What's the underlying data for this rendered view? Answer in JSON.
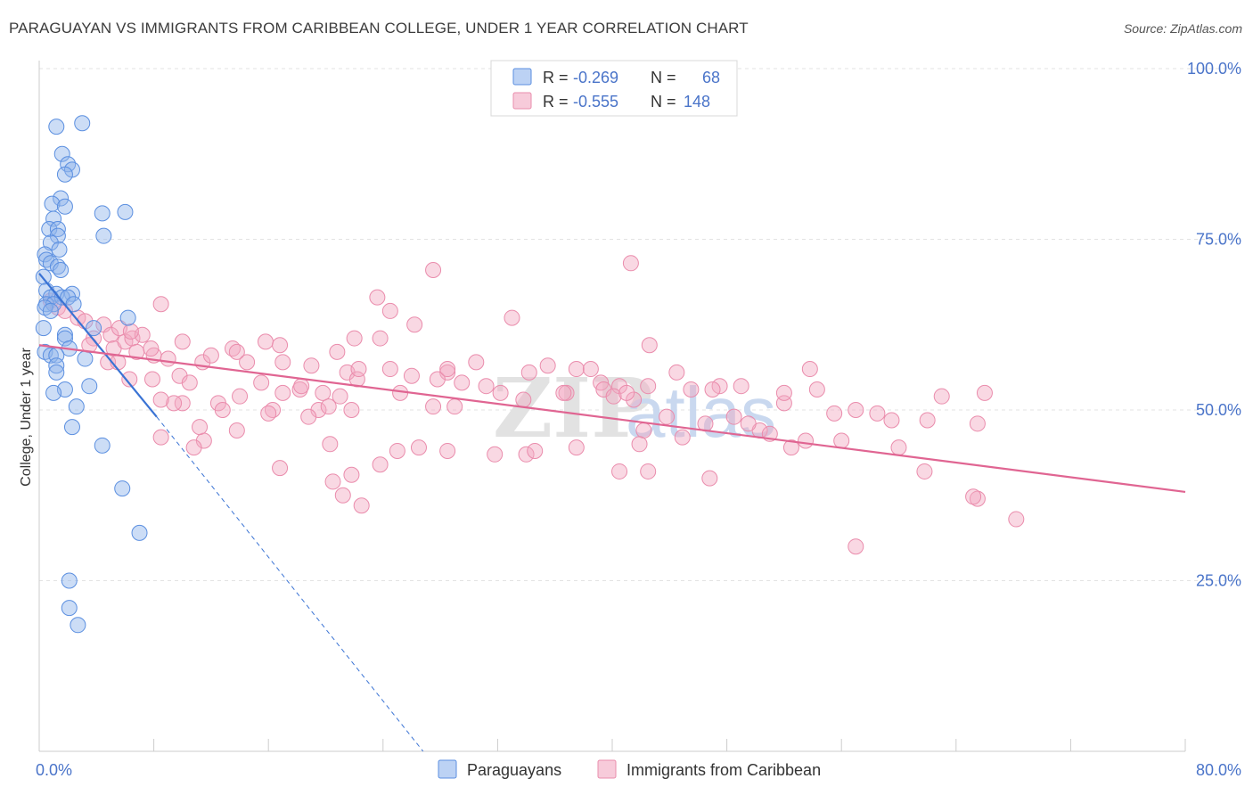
{
  "title": "PARAGUAYAN VS IMMIGRANTS FROM CARIBBEAN COLLEGE, UNDER 1 YEAR CORRELATION CHART",
  "source": "Source: ZipAtlas.com",
  "watermark": {
    "part1": "ZIP",
    "part2": "atlas"
  },
  "legend": {
    "rows": [
      {
        "r_label": "R =",
        "r_value": "-0.269",
        "n_label": "N =",
        "n_value": "68",
        "color": "#8fb4ec"
      },
      {
        "r_label": "R =",
        "r_value": "-0.555",
        "n_label": "N =",
        "n_value": "148",
        "color": "#f2a9c2"
      }
    ]
  },
  "bottom_legend": [
    {
      "label": "Paraguayans",
      "color": "#8fb4ec"
    },
    {
      "label": "Immigrants from Caribbean",
      "color": "#f2a9c2"
    }
  ],
  "chart_data": {
    "type": "scatter",
    "title": "PARAGUAYAN VS IMMIGRANTS FROM CARIBBEAN COLLEGE, UNDER 1 YEAR CORRELATION CHART",
    "xlabel": "",
    "ylabel": "College, Under 1 year",
    "xlim": [
      0,
      80
    ],
    "ylim": [
      0,
      100
    ],
    "x_tick_labels": [
      "0.0%",
      "80.0%"
    ],
    "y_tick_labels": [
      "100.0%",
      "75.0%",
      "50.0%",
      "25.0%"
    ],
    "y_ticks": [
      100,
      75,
      50,
      25
    ],
    "grid": true,
    "legend_position": "top-center",
    "series": [
      {
        "name": "Paraguayans",
        "color": "#8fb4ec",
        "stroke": "#5b8fe0",
        "trend_color": "#3a73d4",
        "points": [
          [
            3.0,
            92.0
          ],
          [
            1.2,
            91.5
          ],
          [
            1.6,
            87.5
          ],
          [
            2.0,
            86.0
          ],
          [
            2.3,
            85.2
          ],
          [
            1.8,
            84.5
          ],
          [
            1.5,
            81.0
          ],
          [
            0.9,
            80.2
          ],
          [
            1.8,
            79.8
          ],
          [
            4.4,
            78.8
          ],
          [
            6.0,
            79.0
          ],
          [
            1.0,
            78.0
          ],
          [
            0.7,
            76.5
          ],
          [
            1.3,
            76.5
          ],
          [
            1.3,
            75.5
          ],
          [
            4.5,
            75.5
          ],
          [
            0.8,
            74.5
          ],
          [
            1.4,
            73.5
          ],
          [
            0.4,
            72.8
          ],
          [
            0.5,
            72.0
          ],
          [
            0.8,
            71.5
          ],
          [
            1.3,
            71.0
          ],
          [
            1.5,
            70.5
          ],
          [
            0.3,
            69.5
          ],
          [
            0.5,
            67.5
          ],
          [
            1.2,
            67.0
          ],
          [
            2.3,
            67.0
          ],
          [
            0.8,
            66.5
          ],
          [
            1.6,
            66.5
          ],
          [
            2.0,
            66.5
          ],
          [
            0.5,
            65.5
          ],
          [
            1.0,
            65.5
          ],
          [
            2.4,
            65.5
          ],
          [
            0.4,
            65.0
          ],
          [
            0.8,
            64.5
          ],
          [
            6.2,
            63.5
          ],
          [
            0.3,
            62.0
          ],
          [
            3.8,
            62.0
          ],
          [
            1.8,
            61.0
          ],
          [
            1.8,
            60.5
          ],
          [
            2.1,
            59.0
          ],
          [
            0.4,
            58.5
          ],
          [
            0.8,
            58.0
          ],
          [
            1.2,
            58.0
          ],
          [
            3.2,
            57.5
          ],
          [
            1.2,
            56.5
          ],
          [
            1.2,
            55.5
          ],
          [
            3.5,
            53.5
          ],
          [
            1.8,
            53.0
          ],
          [
            1.0,
            52.5
          ],
          [
            2.6,
            50.5
          ],
          [
            2.3,
            47.5
          ],
          [
            4.4,
            44.8
          ],
          [
            5.8,
            38.5
          ],
          [
            7.0,
            32.0
          ],
          [
            2.1,
            25.0
          ],
          [
            2.1,
            21.0
          ],
          [
            2.7,
            18.5
          ]
        ],
        "trend": {
          "x0": 0.0,
          "y0": 70.0,
          "x1": 8.2,
          "y1": 49.0
        },
        "trend_extension": {
          "x0": 8.2,
          "y0": 49.0,
          "x1": 26.8,
          "y1": 0.0
        }
      },
      {
        "name": "Immigrants from Caribbean",
        "color": "#f2a9c2",
        "stroke": "#ea8cac",
        "trend_color": "#e06592",
        "points": [
          [
            0.8,
            66.0
          ],
          [
            1.3,
            65.0
          ],
          [
            1.8,
            64.5
          ],
          [
            2.7,
            63.5
          ],
          [
            3.2,
            63.0
          ],
          [
            4.5,
            62.5
          ],
          [
            5.0,
            61.0
          ],
          [
            3.8,
            60.5
          ],
          [
            3.5,
            59.5
          ],
          [
            5.2,
            59.0
          ],
          [
            6.0,
            60.0
          ],
          [
            6.5,
            60.5
          ],
          [
            7.2,
            61.0
          ],
          [
            8.5,
            65.5
          ],
          [
            6.8,
            58.5
          ],
          [
            8.0,
            58.0
          ],
          [
            9.0,
            57.5
          ],
          [
            4.8,
            57.0
          ],
          [
            5.6,
            62.0
          ],
          [
            6.4,
            61.5
          ],
          [
            7.8,
            59.0
          ],
          [
            10.0,
            60.0
          ],
          [
            11.4,
            57.0
          ],
          [
            9.8,
            55.0
          ],
          [
            10.5,
            54.0
          ],
          [
            12.0,
            58.0
          ],
          [
            13.5,
            59.0
          ],
          [
            14.5,
            57.0
          ],
          [
            15.8,
            60.0
          ],
          [
            16.8,
            59.5
          ],
          [
            17.0,
            57.0
          ],
          [
            18.2,
            53.0
          ],
          [
            19.0,
            56.5
          ],
          [
            20.8,
            58.5
          ],
          [
            21.5,
            55.5
          ],
          [
            22.2,
            54.5
          ],
          [
            23.8,
            60.5
          ],
          [
            24.5,
            56.0
          ],
          [
            25.2,
            52.5
          ],
          [
            26.0,
            55.0
          ],
          [
            27.5,
            50.5
          ],
          [
            28.5,
            55.5
          ],
          [
            29.5,
            54.0
          ],
          [
            30.5,
            57.0
          ],
          [
            31.2,
            53.5
          ],
          [
            32.2,
            52.5
          ],
          [
            33.8,
            51.5
          ],
          [
            34.2,
            55.5
          ],
          [
            35.5,
            56.5
          ],
          [
            36.8,
            52.5
          ],
          [
            37.5,
            56.0
          ],
          [
            38.5,
            56.0
          ],
          [
            39.2,
            54.0
          ],
          [
            40.5,
            53.5
          ],
          [
            41.5,
            51.5
          ],
          [
            42.2,
            47.0
          ],
          [
            42.5,
            53.5
          ],
          [
            43.8,
            49.0
          ],
          [
            44.5,
            55.5
          ],
          [
            45.5,
            53.0
          ],
          [
            46.5,
            48.0
          ],
          [
            47.5,
            53.5
          ],
          [
            48.5,
            49.0
          ],
          [
            49.0,
            53.5
          ],
          [
            50.3,
            47.0
          ],
          [
            52.0,
            51.0
          ],
          [
            53.8,
            56.0
          ],
          [
            54.3,
            53.0
          ],
          [
            55.5,
            49.5
          ],
          [
            56.0,
            45.5
          ],
          [
            57.0,
            50.0
          ],
          [
            58.5,
            49.5
          ],
          [
            59.5,
            48.5
          ],
          [
            60.0,
            44.5
          ],
          [
            63.0,
            52.0
          ],
          [
            65.5,
            48.0
          ],
          [
            66.0,
            52.5
          ],
          [
            39.4,
            53.0
          ],
          [
            42.6,
            59.5
          ],
          [
            33.0,
            63.5
          ],
          [
            36.6,
            52.5
          ],
          [
            40.1,
            52.0
          ],
          [
            41.0,
            52.5
          ],
          [
            41.9,
            45.0
          ],
          [
            44.9,
            46.0
          ],
          [
            46.8,
            40.0
          ],
          [
            49.5,
            48.0
          ],
          [
            51.0,
            46.5
          ],
          [
            53.5,
            45.5
          ],
          [
            61.8,
            41.0
          ],
          [
            65.5,
            37.0
          ],
          [
            68.2,
            34.0
          ],
          [
            65.2,
            37.3
          ],
          [
            52.5,
            44.5
          ],
          [
            52.0,
            52.5
          ],
          [
            47.0,
            53.0
          ],
          [
            42.5,
            41.0
          ],
          [
            40.5,
            41.0
          ],
          [
            37.5,
            44.5
          ],
          [
            34.0,
            43.5
          ],
          [
            31.8,
            43.5
          ],
          [
            29.0,
            50.5
          ],
          [
            28.5,
            44.0
          ],
          [
            26.5,
            44.5
          ],
          [
            23.8,
            42.0
          ],
          [
            22.5,
            36.0
          ],
          [
            21.8,
            40.5
          ],
          [
            21.2,
            37.5
          ],
          [
            20.5,
            39.5
          ],
          [
            19.5,
            50.0
          ],
          [
            20.2,
            50.5
          ],
          [
            21.8,
            50.0
          ],
          [
            18.8,
            49.0
          ],
          [
            17.0,
            52.5
          ],
          [
            16.3,
            50.0
          ],
          [
            15.5,
            54.0
          ],
          [
            14.0,
            52.0
          ],
          [
            13.8,
            47.0
          ],
          [
            12.5,
            51.0
          ],
          [
            12.8,
            50.0
          ],
          [
            11.5,
            45.5
          ],
          [
            11.2,
            47.5
          ],
          [
            10.8,
            44.5
          ],
          [
            10.0,
            51.0
          ],
          [
            9.4,
            51.0
          ],
          [
            8.5,
            51.5
          ],
          [
            8.5,
            46.0
          ],
          [
            7.9,
            54.5
          ],
          [
            6.3,
            54.5
          ],
          [
            5.5,
            57.0
          ],
          [
            13.8,
            58.5
          ],
          [
            16.0,
            49.5
          ],
          [
            16.8,
            41.5
          ],
          [
            18.3,
            53.5
          ],
          [
            19.8,
            52.5
          ],
          [
            20.3,
            45.0
          ],
          [
            21.0,
            52.0
          ],
          [
            22.3,
            56.0
          ],
          [
            22.0,
            60.5
          ],
          [
            23.6,
            66.5
          ],
          [
            24.5,
            64.5
          ],
          [
            26.2,
            62.5
          ],
          [
            27.8,
            54.5
          ],
          [
            25.0,
            44.0
          ],
          [
            28.5,
            56.0
          ],
          [
            27.5,
            70.5
          ],
          [
            34.6,
            44.0
          ],
          [
            41.3,
            71.5
          ],
          [
            57.0,
            30.0
          ],
          [
            62.0,
            48.5
          ]
        ],
        "trend": {
          "x0": 0.0,
          "y0": 59.5,
          "x1": 80.0,
          "y1": 38.0
        }
      }
    ]
  }
}
